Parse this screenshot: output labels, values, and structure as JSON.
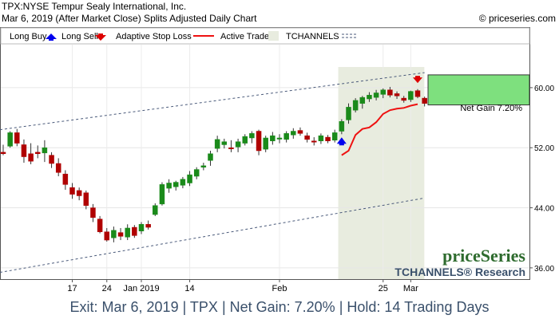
{
  "header": {
    "title": "TPX:NYSE Tempur Sealy International, Inc.",
    "subtitle": "Mar 6, 2019 (After Market Close)  Splits Adjusted Daily Chart",
    "copyright": "© priceseries.com"
  },
  "legend": {
    "long_buy": "Long Buy",
    "long_sell": "Long Sell",
    "adaptive_stop": "Adaptive Stop Loss",
    "active_trade": "Active Trade",
    "tchannels": "TCHANNELS"
  },
  "branding": {
    "logo": "priceSeries",
    "research": "TCHANNELS® Research"
  },
  "trade": {
    "net_gain_label": "Net Gain 7.20%"
  },
  "footer": {
    "text": "Exit: Mar 6, 2019 | TPX | Net Gain: 7.20% | Hold: 14 Trading Days"
  },
  "colors": {
    "up": "#1a8a1a",
    "down": "#b00000",
    "stop": "#ee1111",
    "buy_marker": "#0000ee",
    "sell_marker": "#dd0000",
    "active_shade": "#e8ecdf",
    "gain_box": "#7ee07e",
    "channel": "#4a5a7a",
    "footer_text": "#3a506b"
  },
  "chart_data": {
    "type": "candlestick",
    "y_ticks": [
      "60.00",
      "52.00",
      "44.00",
      "36.00"
    ],
    "y_tick_values": [
      60,
      52,
      44,
      36
    ],
    "ylim": [
      34.5,
      65.3
    ],
    "x_ticks": [
      "17",
      "24",
      "Jan 2019",
      "14",
      "Feb",
      "25",
      "Mar"
    ],
    "x_tick_index": [
      10,
      15,
      20,
      27,
      40,
      55,
      59
    ],
    "candles": [
      {
        "o": 51.4,
        "h": 52.4,
        "l": 51.0,
        "c": 51.2
      },
      {
        "o": 52.2,
        "h": 54.2,
        "l": 52.0,
        "c": 54.0
      },
      {
        "o": 54.0,
        "h": 54.5,
        "l": 52.2,
        "c": 52.6
      },
      {
        "o": 52.4,
        "h": 53.1,
        "l": 50.0,
        "c": 50.8
      },
      {
        "o": 51.2,
        "h": 52.6,
        "l": 49.8,
        "c": 50.2
      },
      {
        "o": 51.4,
        "h": 52.3,
        "l": 50.6,
        "c": 51.2
      },
      {
        "o": 51.3,
        "h": 53.0,
        "l": 50.1,
        "c": 52.0
      },
      {
        "o": 51.0,
        "h": 51.4,
        "l": 49.3,
        "c": 49.9
      },
      {
        "o": 49.9,
        "h": 50.6,
        "l": 48.2,
        "c": 48.7
      },
      {
        "o": 48.5,
        "h": 49.0,
        "l": 46.4,
        "c": 47.1
      },
      {
        "o": 46.7,
        "h": 47.3,
        "l": 45.2,
        "c": 45.8
      },
      {
        "o": 46.3,
        "h": 46.7,
        "l": 45.0,
        "c": 45.6
      },
      {
        "o": 46.0,
        "h": 46.3,
        "l": 43.8,
        "c": 44.3
      },
      {
        "o": 44.0,
        "h": 44.5,
        "l": 42.1,
        "c": 42.7
      },
      {
        "o": 42.5,
        "h": 42.9,
        "l": 40.6,
        "c": 40.8
      },
      {
        "o": 40.8,
        "h": 41.3,
        "l": 39.5,
        "c": 39.7
      },
      {
        "o": 40.0,
        "h": 41.5,
        "l": 39.4,
        "c": 41.0
      },
      {
        "o": 40.7,
        "h": 41.3,
        "l": 39.7,
        "c": 40.2
      },
      {
        "o": 40.1,
        "h": 41.8,
        "l": 39.7,
        "c": 41.3
      },
      {
        "o": 41.4,
        "h": 41.7,
        "l": 40.0,
        "c": 40.3
      },
      {
        "o": 40.9,
        "h": 42.1,
        "l": 40.5,
        "c": 41.8
      },
      {
        "o": 41.8,
        "h": 42.3,
        "l": 41.1,
        "c": 41.4
      },
      {
        "o": 43.1,
        "h": 44.6,
        "l": 42.9,
        "c": 44.3
      },
      {
        "o": 44.5,
        "h": 47.4,
        "l": 44.3,
        "c": 47.1
      },
      {
        "o": 46.6,
        "h": 47.8,
        "l": 46.0,
        "c": 47.3
      },
      {
        "o": 46.8,
        "h": 47.6,
        "l": 46.3,
        "c": 47.4
      },
      {
        "o": 47.0,
        "h": 48.1,
        "l": 46.6,
        "c": 47.8
      },
      {
        "o": 47.3,
        "h": 48.9,
        "l": 46.9,
        "c": 48.4
      },
      {
        "o": 48.2,
        "h": 49.4,
        "l": 47.8,
        "c": 49.1
      },
      {
        "o": 49.4,
        "h": 50.0,
        "l": 49.0,
        "c": 49.6
      },
      {
        "o": 50.3,
        "h": 51.6,
        "l": 49.6,
        "c": 51.2
      },
      {
        "o": 51.9,
        "h": 53.6,
        "l": 51.4,
        "c": 53.1
      },
      {
        "o": 52.4,
        "h": 53.2,
        "l": 51.9,
        "c": 52.8
      },
      {
        "o": 52.0,
        "h": 53.0,
        "l": 51.4,
        "c": 51.9
      },
      {
        "o": 52.1,
        "h": 53.2,
        "l": 51.4,
        "c": 52.8
      },
      {
        "o": 52.6,
        "h": 53.8,
        "l": 52.3,
        "c": 53.5
      },
      {
        "o": 53.3,
        "h": 54.2,
        "l": 52.6,
        "c": 53.9
      },
      {
        "o": 54.2,
        "h": 54.4,
        "l": 51.0,
        "c": 51.6
      },
      {
        "o": 51.8,
        "h": 53.6,
        "l": 51.4,
        "c": 53.3
      },
      {
        "o": 52.9,
        "h": 54.1,
        "l": 52.4,
        "c": 53.6
      },
      {
        "o": 53.2,
        "h": 53.8,
        "l": 52.6,
        "c": 53.3
      },
      {
        "o": 53.1,
        "h": 54.2,
        "l": 52.7,
        "c": 53.9
      },
      {
        "o": 53.7,
        "h": 54.6,
        "l": 53.2,
        "c": 54.2
      },
      {
        "o": 54.3,
        "h": 54.7,
        "l": 53.6,
        "c": 53.9
      },
      {
        "o": 53.6,
        "h": 54.0,
        "l": 52.7,
        "c": 53.1
      },
      {
        "o": 52.9,
        "h": 53.4,
        "l": 52.3,
        "c": 52.8
      },
      {
        "o": 52.9,
        "h": 53.9,
        "l": 52.5,
        "c": 53.6
      },
      {
        "o": 53.4,
        "h": 53.7,
        "l": 52.6,
        "c": 52.9
      },
      {
        "o": 53.0,
        "h": 54.4,
        "l": 52.7,
        "c": 54.0
      },
      {
        "o": 54.2,
        "h": 55.8,
        "l": 53.8,
        "c": 55.5
      },
      {
        "o": 55.7,
        "h": 57.9,
        "l": 55.2,
        "c": 57.4
      },
      {
        "o": 57.0,
        "h": 58.6,
        "l": 56.7,
        "c": 58.3
      },
      {
        "o": 57.9,
        "h": 58.9,
        "l": 57.2,
        "c": 58.7
      },
      {
        "o": 58.5,
        "h": 59.4,
        "l": 58.1,
        "c": 59.0
      },
      {
        "o": 58.7,
        "h": 59.7,
        "l": 58.3,
        "c": 59.3
      },
      {
        "o": 59.1,
        "h": 59.9,
        "l": 58.6,
        "c": 59.7
      },
      {
        "o": 59.7,
        "h": 60.1,
        "l": 58.7,
        "c": 59.0
      },
      {
        "o": 59.2,
        "h": 59.5,
        "l": 58.5,
        "c": 58.9
      },
      {
        "o": 58.6,
        "h": 58.9,
        "l": 58.0,
        "c": 58.3
      },
      {
        "o": 58.4,
        "h": 59.6,
        "l": 58.1,
        "c": 59.5
      },
      {
        "o": 59.6,
        "h": 59.8,
        "l": 58.6,
        "c": 58.8
      },
      {
        "o": 58.6,
        "h": 58.8,
        "l": 57.5,
        "c": 57.9
      }
    ],
    "stop_loss": [
      {
        "i": 49,
        "v": 51.0
      },
      {
        "i": 50,
        "v": 51.6
      },
      {
        "i": 51,
        "v": 53.7
      },
      {
        "i": 52,
        "v": 54.5
      },
      {
        "i": 53,
        "v": 54.7
      },
      {
        "i": 54,
        "v": 55.4
      },
      {
        "i": 55,
        "v": 56.5
      },
      {
        "i": 56,
        "v": 57.0
      },
      {
        "i": 57,
        "v": 57.2
      },
      {
        "i": 58,
        "v": 57.3
      },
      {
        "i": 59,
        "v": 57.6
      },
      {
        "i": 60,
        "v": 57.8
      }
    ],
    "channel_upper": [
      {
        "i": 0,
        "v": 54.4
      },
      {
        "i": 61,
        "v": 62.0
      }
    ],
    "channel_lower": [
      {
        "i": 0,
        "v": 35.4
      },
      {
        "i": 61,
        "v": 45.3
      }
    ],
    "buy_index": 49,
    "sell_index": 60,
    "active_range": [
      49,
      61
    ],
    "gain_range": [
      57.7,
      61.7
    ]
  }
}
